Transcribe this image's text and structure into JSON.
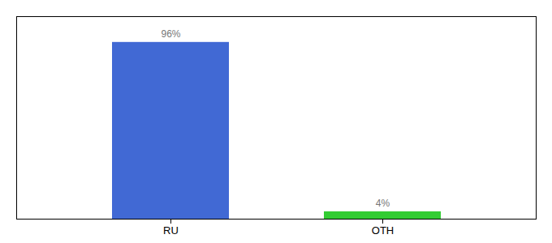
{
  "chart_data": {
    "type": "bar",
    "categories": [
      "RU",
      "OTH"
    ],
    "values": [
      96,
      4
    ],
    "value_labels": [
      "96%",
      "4%"
    ],
    "colors": [
      "#4169d4",
      "#33cc33"
    ],
    "ylim": [
      0,
      110
    ],
    "data_labels": true,
    "tick_labels": "x"
  }
}
